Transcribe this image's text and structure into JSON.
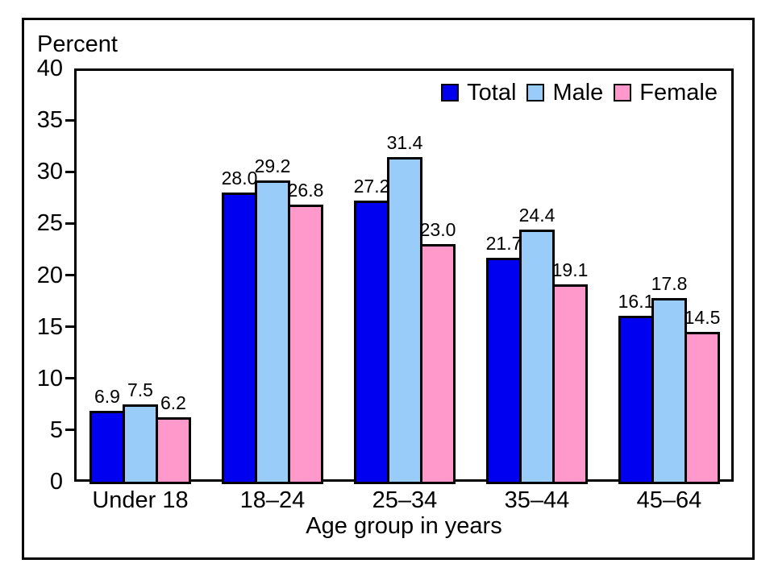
{
  "chart_data": {
    "type": "bar",
    "title": "",
    "ylabel": "Percent",
    "xlabel": "Age group in years",
    "categories": [
      "Under 18",
      "18–24",
      "25–34",
      "35–44",
      "45–64"
    ],
    "series": [
      {
        "name": "Total",
        "color": "#0000F0",
        "values": [
          6.9,
          28.0,
          27.2,
          21.7,
          16.1
        ]
      },
      {
        "name": "Male",
        "color": "#99CCF8",
        "values": [
          7.5,
          29.2,
          31.4,
          24.4,
          17.8
        ]
      },
      {
        "name": "Female",
        "color": "#FF99CC",
        "values": [
          6.2,
          26.8,
          23.0,
          19.1,
          14.5
        ]
      }
    ],
    "ylim": [
      0,
      40
    ],
    "yticks": [
      0,
      5,
      10,
      15,
      20,
      25,
      30,
      35,
      40
    ],
    "value_label_decimals": 1,
    "legend_position": "top-right",
    "grid": false,
    "axis_color": "#000000",
    "text_color": "#000000",
    "background_color": "#ffffff"
  }
}
